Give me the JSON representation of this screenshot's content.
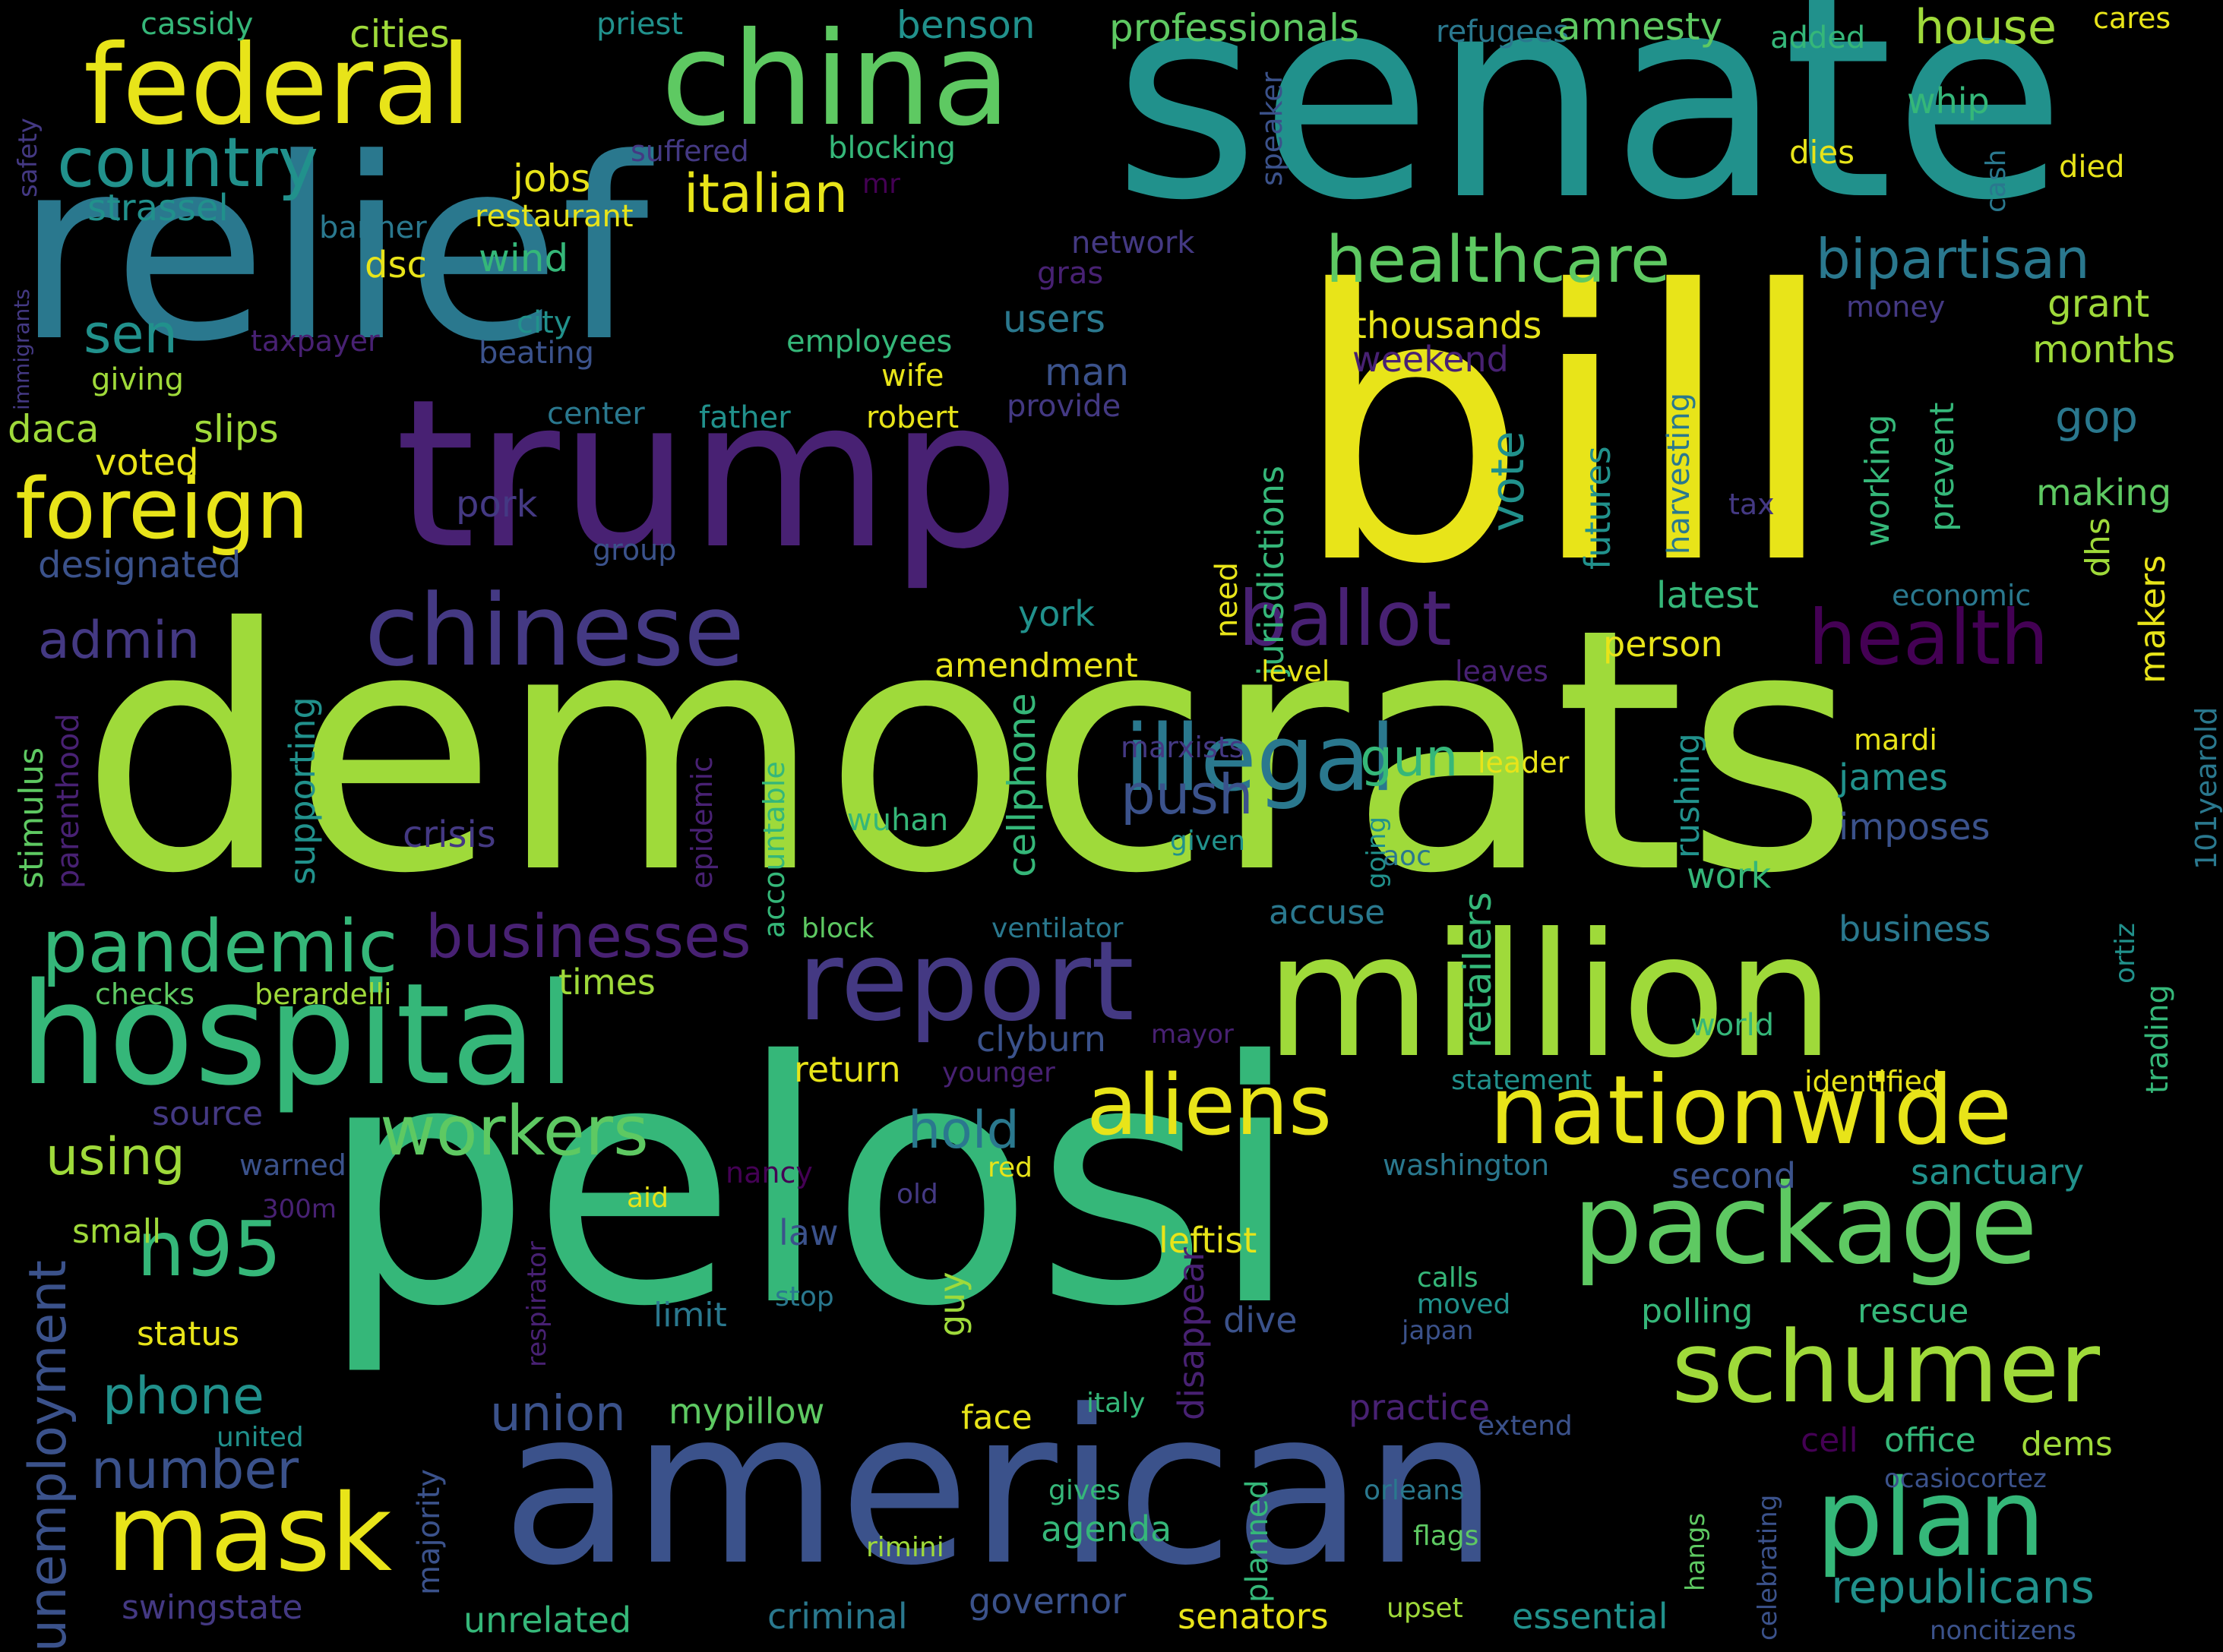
{
  "palette": {
    "yellow": "#e8e419",
    "lime": "#9fda3a",
    "green": "#5ec962",
    "seagreen": "#35b779",
    "teal": "#21918c",
    "steelteal": "#2a788e",
    "blue": "#3b528b",
    "indigo": "#443983",
    "purple": "#482173",
    "darkpurple": "#440154"
  },
  "words": [
    "democrats",
    "pelosi",
    "bill",
    "senate",
    "relief",
    "trump",
    "american",
    "million",
    "hospital",
    "china",
    "federal",
    "report",
    "package",
    "nationwide",
    "schumer",
    "aliens",
    "plan",
    "chinese",
    "mask",
    "illegal",
    "healthcare",
    "foreign",
    "ballot",
    "health",
    "pandemic",
    "n95",
    "businesses",
    "workers",
    "bipartisan",
    "country",
    "italian",
    "unemployment",
    "push",
    "republicans",
    "using",
    "number",
    "phone",
    "sen",
    "admin",
    "hold",
    "union",
    "gun",
    "house",
    "cassidy",
    "priest",
    "benson",
    "professionals",
    "refugees",
    "amnesty",
    "added",
    "cares",
    "cities",
    "strassel",
    "jobs",
    "restaurant",
    "banner",
    "dsc",
    "wind",
    "whip",
    "dies",
    "died",
    "cash",
    "speaker",
    "suffered",
    "blocking",
    "mr",
    "network",
    "gras",
    "grant",
    "money",
    "thousands",
    "jurisdictions",
    "weekend",
    "users",
    "man",
    "city",
    "employees",
    "taxpayer",
    "beating",
    "giving",
    "wife",
    "daca",
    "slips",
    "voted",
    "center",
    "father",
    "robert",
    "provide",
    "months",
    "gop",
    "vote",
    "futures",
    "harvesting",
    "working",
    "prevent",
    "making",
    "pork",
    "group",
    "designated",
    "tax",
    "dhs",
    "economic",
    "latest",
    "makers",
    "york",
    "need",
    "level",
    "leaves",
    "person",
    "amendment",
    "supporting",
    "stimulus",
    "parenthood",
    "mardi",
    "marxists",
    "leader",
    "james",
    "crisis",
    "epidemic",
    "accountable",
    "wuhan",
    "cellphone",
    "given",
    "going",
    "aoc",
    "imposes",
    "101yearold",
    "work",
    "retailers",
    "rushing",
    "accuse",
    "block",
    "ventilator",
    "business",
    "checks",
    "berardelli",
    "times",
    "clyburn",
    "mayor",
    "ortiz",
    "trading",
    "world",
    "return",
    "younger",
    "statement",
    "identified",
    "source",
    "warned",
    "nancy",
    "red",
    "washington",
    "second",
    "sanctuary",
    "300m",
    "old",
    "small",
    "law",
    "leftist",
    "status",
    "respirator",
    "stop",
    "limit",
    "guy",
    "dive",
    "calls",
    "moved",
    "japan",
    "polling",
    "rescue",
    "disappear",
    "aid",
    "united",
    "majority",
    "mypillow",
    "face",
    "italy",
    "practice",
    "extend",
    "cell",
    "office",
    "dems",
    "gives",
    "orleans",
    "ocasiocortez",
    "agenda",
    "rimini",
    "planned",
    "celebrating",
    "swingstate",
    "unrelated",
    "criminal",
    "governor",
    "senators",
    "upset",
    "flags",
    "hangs",
    "essential",
    "noncitizens",
    "safety",
    "immigrants"
  ]
}
